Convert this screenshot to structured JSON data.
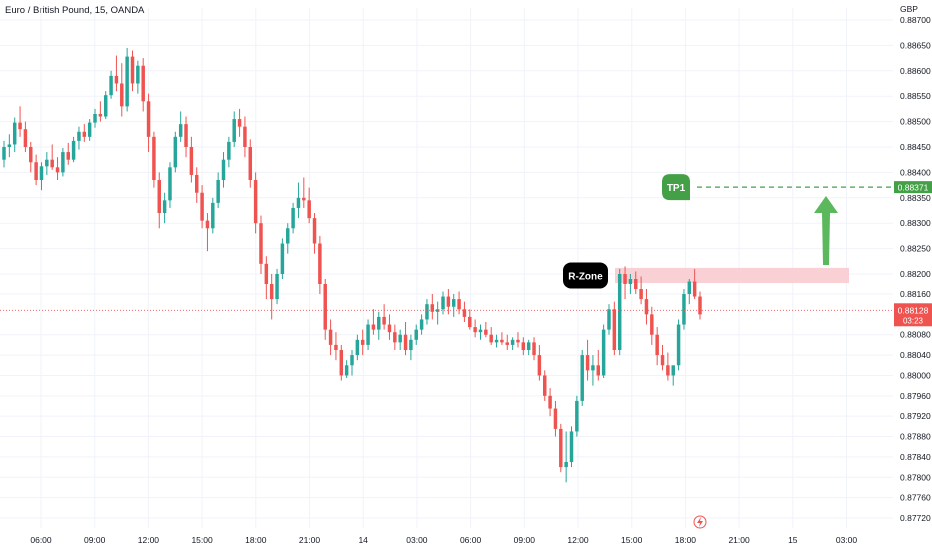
{
  "header": {
    "title": "Euro / British Pound, 15, OANDA"
  },
  "currency_label": "GBP",
  "colors": {
    "up": "#26a69a",
    "down": "#ef5350",
    "zone_fill": "#f8c9ce",
    "target": "#43a047",
    "zone_label_bg": "#000000",
    "last_price": "#ef5350",
    "grid": "#f0f3fa"
  },
  "chart_data": {
    "type": "candlestick",
    "instrument": "Euro / British Pound",
    "timeframe": "15",
    "source": "OANDA",
    "y_ticks": [
      "0.88700",
      "0.88650",
      "0.88600",
      "0.88550",
      "0.88500",
      "0.88450",
      "0.88400",
      "0.88350",
      "0.88300",
      "0.88250",
      "0.88200",
      "0.88160",
      "0.88080",
      "0.88040",
      "0.88000",
      "0.87960",
      "0.87920",
      "0.87880",
      "0.87840",
      "0.87800",
      "0.87760",
      "0.87720"
    ],
    "ylim": [
      0.87705,
      0.88725
    ],
    "x_ticks": [
      "06:00",
      "09:00",
      "12:00",
      "15:00",
      "18:00",
      "21:00",
      "14",
      "03:00",
      "06:00",
      "09:00",
      "12:00",
      "15:00",
      "18:00",
      "21:00",
      "15",
      "03:00"
    ],
    "candles": [
      [
        0.88425,
        0.88462,
        0.8841,
        0.8845
      ],
      [
        0.8845,
        0.88475,
        0.8843,
        0.88455
      ],
      [
        0.88455,
        0.88508,
        0.8844,
        0.88498
      ],
      [
        0.88498,
        0.8853,
        0.8847,
        0.88485
      ],
      [
        0.88485,
        0.885,
        0.8844,
        0.8845
      ],
      [
        0.8845,
        0.8846,
        0.884,
        0.8842
      ],
      [
        0.8842,
        0.88435,
        0.88375,
        0.88385
      ],
      [
        0.88385,
        0.8842,
        0.88365,
        0.88412
      ],
      [
        0.88412,
        0.8844,
        0.88395,
        0.88425
      ],
      [
        0.88425,
        0.88455,
        0.88405,
        0.8841
      ],
      [
        0.8841,
        0.8843,
        0.88385,
        0.884
      ],
      [
        0.884,
        0.88448,
        0.88392,
        0.8844
      ],
      [
        0.8844,
        0.88458,
        0.88415,
        0.88425
      ],
      [
        0.88425,
        0.8847,
        0.8842,
        0.88462
      ],
      [
        0.88462,
        0.8849,
        0.88445,
        0.8848
      ],
      [
        0.8848,
        0.88495,
        0.8846,
        0.8847
      ],
      [
        0.8847,
        0.88505,
        0.88462,
        0.88498
      ],
      [
        0.88498,
        0.88525,
        0.88488,
        0.88515
      ],
      [
        0.88515,
        0.8854,
        0.885,
        0.8851
      ],
      [
        0.8851,
        0.8856,
        0.88505,
        0.88552
      ],
      [
        0.88552,
        0.886,
        0.88545,
        0.8859
      ],
      [
        0.8859,
        0.8863,
        0.8856,
        0.88575
      ],
      [
        0.88575,
        0.88615,
        0.8851,
        0.8853
      ],
      [
        0.8853,
        0.88645,
        0.8852,
        0.88628
      ],
      [
        0.88628,
        0.8864,
        0.8856,
        0.88575
      ],
      [
        0.88575,
        0.8862,
        0.88555,
        0.8861
      ],
      [
        0.8861,
        0.88625,
        0.8852,
        0.8854
      ],
      [
        0.8854,
        0.88555,
        0.8844,
        0.8847
      ],
      [
        0.8847,
        0.8848,
        0.8837,
        0.88385
      ],
      [
        0.88385,
        0.884,
        0.8829,
        0.8832
      ],
      [
        0.8832,
        0.8836,
        0.883,
        0.88345
      ],
      [
        0.88345,
        0.8842,
        0.8833,
        0.8841
      ],
      [
        0.8841,
        0.8848,
        0.884,
        0.8847
      ],
      [
        0.8847,
        0.8852,
        0.8846,
        0.88495
      ],
      [
        0.88495,
        0.8851,
        0.8843,
        0.8845
      ],
      [
        0.8845,
        0.8847,
        0.8838,
        0.88395
      ],
      [
        0.88395,
        0.8841,
        0.8834,
        0.8836
      ],
      [
        0.8836,
        0.88375,
        0.8829,
        0.88305
      ],
      [
        0.88305,
        0.8832,
        0.88245,
        0.8829
      ],
      [
        0.8829,
        0.8835,
        0.8828,
        0.8834
      ],
      [
        0.8834,
        0.884,
        0.8833,
        0.88385
      ],
      [
        0.88385,
        0.8844,
        0.8837,
        0.88425
      ],
      [
        0.88425,
        0.8847,
        0.8841,
        0.8846
      ],
      [
        0.8846,
        0.8852,
        0.8845,
        0.88505
      ],
      [
        0.88505,
        0.88525,
        0.8847,
        0.8849
      ],
      [
        0.8849,
        0.8851,
        0.8843,
        0.8845
      ],
      [
        0.8845,
        0.88465,
        0.8837,
        0.88385
      ],
      [
        0.88385,
        0.884,
        0.8828,
        0.883
      ],
      [
        0.883,
        0.88315,
        0.882,
        0.8822
      ],
      [
        0.8822,
        0.88235,
        0.8815,
        0.8818
      ],
      [
        0.8818,
        0.882,
        0.8811,
        0.8815
      ],
      [
        0.8815,
        0.8821,
        0.8814,
        0.882
      ],
      [
        0.882,
        0.8827,
        0.8819,
        0.8826
      ],
      [
        0.8826,
        0.883,
        0.8824,
        0.8829
      ],
      [
        0.8829,
        0.8834,
        0.8828,
        0.8833
      ],
      [
        0.8833,
        0.8838,
        0.8831,
        0.8835
      ],
      [
        0.8835,
        0.8839,
        0.8833,
        0.88345
      ],
      [
        0.88345,
        0.8837,
        0.883,
        0.8831
      ],
      [
        0.8831,
        0.8832,
        0.8824,
        0.8826
      ],
      [
        0.8826,
        0.88275,
        0.8816,
        0.8818
      ],
      [
        0.8818,
        0.8819,
        0.8807,
        0.8809
      ],
      [
        0.8809,
        0.8811,
        0.8804,
        0.8806
      ],
      [
        0.8806,
        0.88085,
        0.8803,
        0.8805
      ],
      [
        0.8805,
        0.8806,
        0.8799,
        0.88
      ],
      [
        0.88,
        0.8803,
        0.87995,
        0.8802
      ],
      [
        0.8802,
        0.8805,
        0.88,
        0.8804
      ],
      [
        0.8804,
        0.8808,
        0.8803,
        0.8807
      ],
      [
        0.8807,
        0.8809,
        0.8804,
        0.8806
      ],
      [
        0.8806,
        0.8811,
        0.8805,
        0.881
      ],
      [
        0.881,
        0.8813,
        0.8808,
        0.8809
      ],
      [
        0.8809,
        0.88125,
        0.8807,
        0.88115
      ],
      [
        0.88115,
        0.8814,
        0.8809,
        0.881
      ],
      [
        0.881,
        0.8812,
        0.8807,
        0.88085
      ],
      [
        0.88085,
        0.881,
        0.8805,
        0.88065
      ],
      [
        0.88065,
        0.8809,
        0.8805,
        0.8808
      ],
      [
        0.8808,
        0.88105,
        0.8804,
        0.8805
      ],
      [
        0.8805,
        0.8808,
        0.8803,
        0.8807
      ],
      [
        0.8807,
        0.881,
        0.8806,
        0.8809
      ],
      [
        0.8809,
        0.8812,
        0.8808,
        0.8811
      ],
      [
        0.8811,
        0.8815,
        0.881,
        0.8814
      ],
      [
        0.8814,
        0.8816,
        0.8811,
        0.88125
      ],
      [
        0.88125,
        0.88145,
        0.881,
        0.8813
      ],
      [
        0.8813,
        0.88165,
        0.8812,
        0.88155
      ],
      [
        0.88155,
        0.8817,
        0.8812,
        0.88135
      ],
      [
        0.88135,
        0.8816,
        0.88115,
        0.8815
      ],
      [
        0.8815,
        0.88165,
        0.8812,
        0.8813
      ],
      [
        0.8813,
        0.88145,
        0.88105,
        0.88115
      ],
      [
        0.88115,
        0.8813,
        0.8809,
        0.88095
      ],
      [
        0.88095,
        0.8811,
        0.88075,
        0.88085
      ],
      [
        0.88085,
        0.881,
        0.8807,
        0.8809
      ],
      [
        0.8809,
        0.88105,
        0.88075,
        0.8808
      ],
      [
        0.8808,
        0.88095,
        0.8806,
        0.88065
      ],
      [
        0.88065,
        0.8808,
        0.88055,
        0.8807
      ],
      [
        0.8807,
        0.88085,
        0.8806,
        0.88065
      ],
      [
        0.88065,
        0.8808,
        0.8805,
        0.8806
      ],
      [
        0.8806,
        0.88075,
        0.8805,
        0.8807
      ],
      [
        0.8807,
        0.88085,
        0.88055,
        0.88065
      ],
      [
        0.88065,
        0.88075,
        0.8804,
        0.8805
      ],
      [
        0.8805,
        0.8807,
        0.8804,
        0.88065
      ],
      [
        0.88065,
        0.88075,
        0.8803,
        0.8804
      ],
      [
        0.8804,
        0.8806,
        0.8799,
        0.88
      ],
      [
        0.88,
        0.8801,
        0.8795,
        0.8796
      ],
      [
        0.8796,
        0.87975,
        0.8792,
        0.87935
      ],
      [
        0.87935,
        0.8795,
        0.8788,
        0.87895
      ],
      [
        0.87895,
        0.87905,
        0.8781,
        0.8782
      ],
      [
        0.8782,
        0.8789,
        0.8779,
        0.8783
      ],
      [
        0.8783,
        0.879,
        0.8782,
        0.8789
      ],
      [
        0.8789,
        0.8796,
        0.8788,
        0.8795
      ],
      [
        0.8795,
        0.8805,
        0.8794,
        0.8804
      ],
      [
        0.8804,
        0.8807,
        0.8799,
        0.8801
      ],
      [
        0.8801,
        0.8804,
        0.8798,
        0.8802
      ],
      [
        0.8802,
        0.8805,
        0.8799,
        0.88
      ],
      [
        0.88,
        0.881,
        0.87995,
        0.8809
      ],
      [
        0.8809,
        0.8814,
        0.8808,
        0.8813
      ],
      [
        0.8813,
        0.88145,
        0.8804,
        0.8805
      ],
      [
        0.8805,
        0.8821,
        0.8804,
        0.882
      ],
      [
        0.882,
        0.88215,
        0.8815,
        0.8818
      ],
      [
        0.8818,
        0.882,
        0.8816,
        0.8819
      ],
      [
        0.8819,
        0.88205,
        0.8816,
        0.8817
      ],
      [
        0.8817,
        0.88195,
        0.8814,
        0.8815
      ],
      [
        0.8815,
        0.8817,
        0.881,
        0.8812
      ],
      [
        0.8812,
        0.88135,
        0.8806,
        0.8808
      ],
      [
        0.8808,
        0.88095,
        0.8802,
        0.8804
      ],
      [
        0.8804,
        0.8806,
        0.8801,
        0.8802
      ],
      [
        0.8802,
        0.88045,
        0.8799,
        0.88
      ],
      [
        0.88,
        0.8801,
        0.8798,
        0.8802
      ],
      [
        0.8802,
        0.8811,
        0.8801,
        0.881
      ],
      [
        0.881,
        0.8817,
        0.8809,
        0.8816
      ],
      [
        0.8816,
        0.8819,
        0.8814,
        0.88185
      ],
      [
        0.88185,
        0.8821,
        0.8815,
        0.88155
      ],
      [
        0.88155,
        0.88165,
        0.8811,
        0.8812
      ]
    ],
    "resistance_zone": {
      "label": "R-Zone",
      "low": 0.88182,
      "high": 0.88212
    },
    "target": {
      "label": "TP1",
      "price": 0.88371,
      "price_label": "0.88371"
    },
    "last_price": {
      "value": 0.88128,
      "label": "0.88128",
      "countdown": "03:23"
    }
  }
}
